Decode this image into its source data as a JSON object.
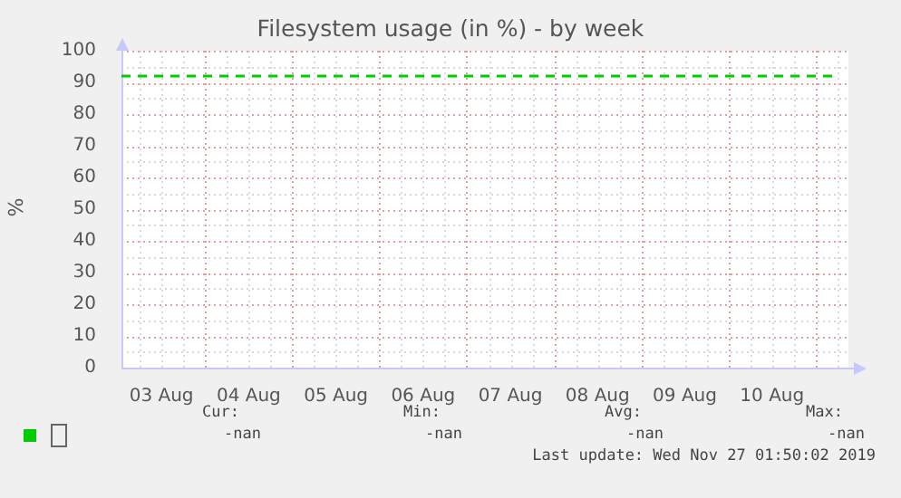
{
  "chart_data": {
    "type": "line",
    "title": "Filesystem usage (in %) - by week",
    "ylabel": "%",
    "xlim": [
      "--08-03T01:00",
      "--08-11T09:00"
    ],
    "xticks": [
      {
        "value": "--08-03T12:00",
        "label": "03 Aug"
      },
      {
        "value": "--08-04T12:00",
        "label": "04 Aug"
      },
      {
        "value": "--08-05T12:00",
        "label": "05 Aug"
      },
      {
        "value": "--08-06T12:00",
        "label": "06 Aug"
      },
      {
        "value": "--08-07T12:00",
        "label": "07 Aug"
      },
      {
        "value": "--08-08T12:00",
        "label": "08 Aug"
      },
      {
        "value": "--08-09T12:00",
        "label": "09 Aug"
      },
      {
        "value": "--08-10T12:00",
        "label": "10 Aug"
      }
    ],
    "ylim": [
      0,
      100
    ],
    "yticks": [
      0,
      10,
      20,
      30,
      40,
      50,
      60,
      70,
      80,
      90,
      100
    ],
    "grid": true,
    "ref_lines": [
      {
        "axis": "y",
        "value": 92,
        "color": "#00cc00",
        "line_style": "dashed"
      }
    ],
    "annotations": [
      "Cur:",
      "-nan",
      "Min:",
      "-nan",
      "Avg:",
      "-nan",
      "Max:",
      "-nan",
      "Last update: Wed Nov 27 01:50:02 2019"
    ]
  }
}
